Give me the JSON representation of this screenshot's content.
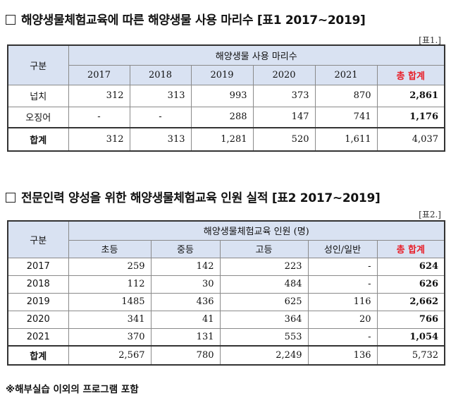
{
  "table1": {
    "heading": "해양생물체험교육에 따른 해양생물 사용 마리수 [표1 2017~2019]",
    "tag": "[표1.]",
    "rowhead_label": "구분",
    "group_label": "해양생물 사용 마리수",
    "columns": [
      "2017",
      "2018",
      "2019",
      "2020",
      "2021"
    ],
    "total_label": "총 합계",
    "rows": [
      {
        "label": "넙치",
        "values": [
          "312",
          "313",
          "993",
          "373",
          "870"
        ],
        "total": "2,861"
      },
      {
        "label": "오징어",
        "values": [
          "-",
          "-",
          "288",
          "147",
          "741"
        ],
        "total": "1,176"
      }
    ],
    "sum": {
      "label": "합계",
      "values": [
        "312",
        "313",
        "1,281",
        "520",
        "1,611"
      ],
      "total": "4,037"
    }
  },
  "table2": {
    "heading": "전문인력 양성을 위한 해양생물체험교육 인원 실적 [표2 2017~2019]",
    "tag": "[표2.]",
    "rowhead_label": "구분",
    "group_label": "해양생물체험교육 인원 (명)",
    "columns": [
      "초등",
      "중등",
      "고등",
      "성인/일반"
    ],
    "total_label": "총 합계",
    "rows": [
      {
        "label": "2017",
        "values": [
          "259",
          "142",
          "223",
          "-"
        ],
        "total": "624"
      },
      {
        "label": "2018",
        "values": [
          "112",
          "30",
          "484",
          "-"
        ],
        "total": "626"
      },
      {
        "label": "2019",
        "values": [
          "1485",
          "436",
          "625",
          "116"
        ],
        "total": "2,662"
      },
      {
        "label": "2020",
        "values": [
          "341",
          "41",
          "364",
          "20"
        ],
        "total": "766"
      },
      {
        "label": "2021",
        "values": [
          "370",
          "131",
          "553",
          "-"
        ],
        "total": "1,054"
      }
    ],
    "sum": {
      "label": "합계",
      "values": [
        "2,567",
        "780",
        "2,249",
        "136"
      ],
      "total": "5,732"
    }
  },
  "note": "※해부실습 이외의 프로그램 포함"
}
